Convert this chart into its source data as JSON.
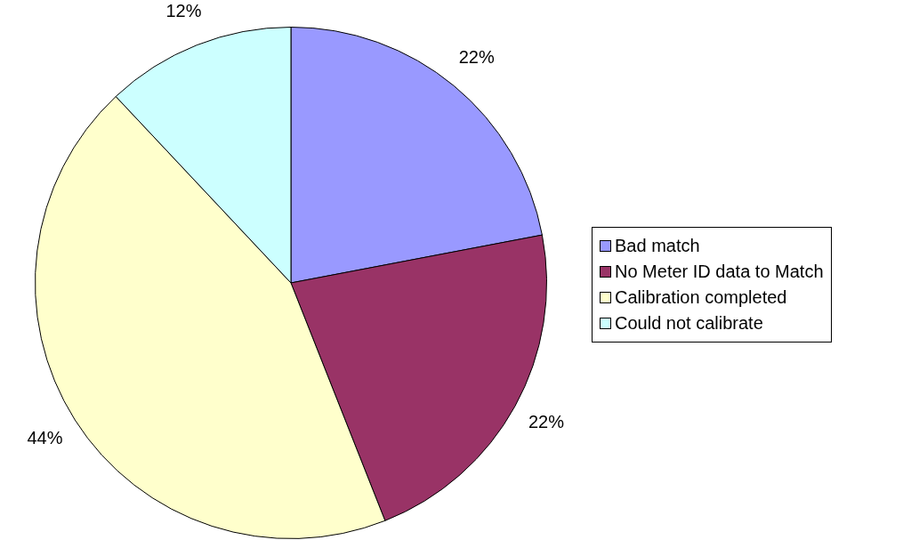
{
  "chart_data": {
    "type": "pie",
    "categories": [
      "Bad match",
      "No Meter ID data to Match",
      "Calibration completed",
      "Could not calibrate"
    ],
    "values": [
      22,
      22,
      44,
      12
    ],
    "value_labels": [
      "22%",
      "22%",
      "44%",
      "12%"
    ],
    "colors": [
      "#9999ff",
      "#993366",
      "#ffffcc",
      "#ccffff"
    ],
    "legend": "right"
  }
}
